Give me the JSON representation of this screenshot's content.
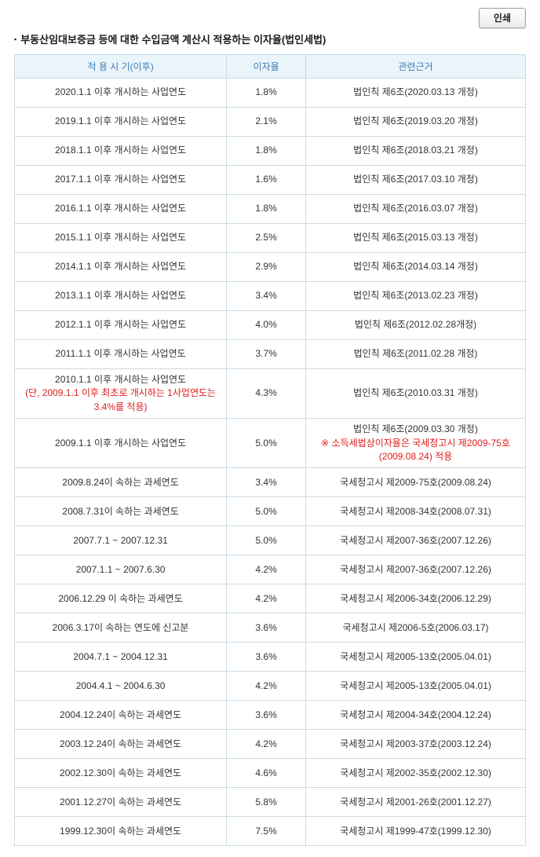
{
  "toolbar": {
    "print_label": "인쇄"
  },
  "title_bullet": "▪",
  "title": "부동산임대보증금 등에 대한 수입금액 계산시 적용하는 이자율(법인세법)",
  "colors": {
    "header_bg": "#eaf4fb",
    "header_text": "#3e7cb1",
    "border": "#ccd9e2",
    "text": "#333333",
    "note_red": "#e01b1b"
  },
  "table": {
    "headers": [
      "적 용 시 기(이후)",
      "이자율",
      "관련근거"
    ],
    "rows": [
      {
        "period": "2020.1.1 이후 개시하는 사업연도",
        "rate": "1.8%",
        "basis": "법인칙 제6조(2020.03.13 개정)"
      },
      {
        "period": "2019.1.1 이후 개시하는 사업연도",
        "rate": "2.1%",
        "basis": "법인칙 제6조(2019.03.20 개정)"
      },
      {
        "period": "2018.1.1 이후 개시하는 사업연도",
        "rate": "1.8%",
        "basis": "법인칙 제6조(2018.03.21 개정)"
      },
      {
        "period": "2017.1.1 이후 개시하는 사업연도",
        "rate": "1.6%",
        "basis": "법인칙 제6조(2017.03.10 개정)"
      },
      {
        "period": "2016.1.1 이후 개시하는 사업연도",
        "rate": "1.8%",
        "basis": "법인칙 제6조(2016.03.07 개정)"
      },
      {
        "period": "2015.1.1 이후 개시하는 사업연도",
        "rate": "2.5%",
        "basis": "법인칙 제6조(2015.03.13 개정)"
      },
      {
        "period": "2014.1.1 이후 개시하는 사업연도",
        "rate": "2.9%",
        "basis": "법인칙 제6조(2014.03.14 개정)"
      },
      {
        "period": "2013.1.1 이후 개시하는 사업연도",
        "rate": "3.4%",
        "basis": "법인칙 제6조(2013.02.23 개정)"
      },
      {
        "period": "2012.1.1 이후 개시하는 사업연도",
        "rate": "4.0%",
        "basis": "법인칙 제6조(2012.02.28개정)"
      },
      {
        "period": "2011.1.1 이후 개시하는 사업연도",
        "rate": "3.7%",
        "basis": "법인칙 제6조(2011.02.28 개정)"
      },
      {
        "period": "2010.1.1 이후 개시하는 사업연도",
        "period_note": "(단, 2009.1.1 이후 최초로 개시하는 1사업연도는 3.4%를 적용)",
        "rate": "4.3%",
        "basis": "법인칙 제6조(2010.03.31 개정)"
      },
      {
        "period": "2009.1.1 이후 개시하는 사업연도",
        "rate": "5.0%",
        "basis": "법인칙 제6조(2009.03.30 개정)",
        "basis_note": "※ 소득세법상이자율은 국세청고시 제2009-75호(2009.08.24) 적용"
      },
      {
        "period": "2009.8.24이 속하는 과세연도",
        "rate": "3.4%",
        "basis": "국세청고시 제2009-75호(2009.08.24)"
      },
      {
        "period": "2008.7.31이 속하는 과세연도",
        "rate": "5.0%",
        "basis": "국세청고시 제2008-34호(2008.07.31)"
      },
      {
        "period": "2007.7.1 ~ 2007.12.31",
        "rate": "5.0%",
        "basis": "국세청고시 제2007-36호(2007.12.26)"
      },
      {
        "period": "2007.1.1 ~ 2007.6.30",
        "rate": "4.2%",
        "basis": "국세청고시 제2007-36호(2007.12.26)"
      },
      {
        "period": "2006.12.29 이 속하는 과세연도",
        "rate": "4.2%",
        "basis": "국세청고시 제2006-34호(2006.12.29)"
      },
      {
        "period": "2006.3.17이 속하는 연도에 신고분",
        "rate": "3.6%",
        "basis": "국세청고시 제2006-5호(2006.03.17)"
      },
      {
        "period": "2004.7.1 ~ 2004.12.31",
        "rate": "3.6%",
        "basis": "국세청고시 제2005-13호(2005.04.01)"
      },
      {
        "period": "2004.4.1 ~ 2004.6.30",
        "rate": "4.2%",
        "basis": "국세청고시 제2005-13호(2005.04.01)"
      },
      {
        "period": "2004.12.24이 속하는 과세연도",
        "rate": "3.6%",
        "basis": "국세청고시 제2004-34호(2004.12.24)"
      },
      {
        "period": "2003.12.24이 속하는 과세연도",
        "rate": "4.2%",
        "basis": "국세청고시 제2003-37호(2003.12.24)"
      },
      {
        "period": "2002.12.30이 속하는 과세연도",
        "rate": "4.6%",
        "basis": "국세청고시 제2002-35호(2002.12.30)"
      },
      {
        "period": "2001.12.27이 속하는 과세연도",
        "rate": "5.8%",
        "basis": "국세청고시 제2001-26호(2001.12.27)"
      },
      {
        "period": "1999.12.30이 속하는 과세연도",
        "rate": "7.5%",
        "basis": "국세청고시 제1999-47호(1999.12.30)"
      }
    ]
  }
}
